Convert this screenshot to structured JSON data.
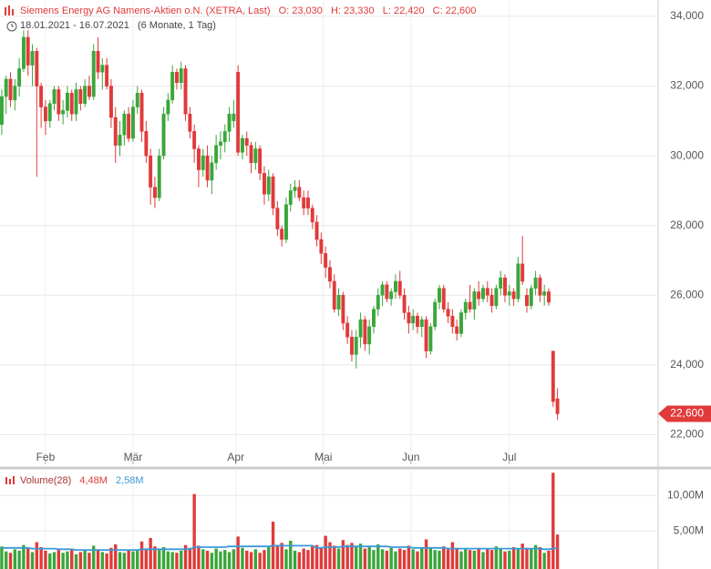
{
  "chart_data": {
    "type": "candlestick",
    "title": "Siemens Energy AG Namens-Aktien o.N. (XETRA, Last)",
    "ohlc_labels": [
      "O: 23,030",
      "H: 23,330",
      "L: 22,420",
      "C: 22,600"
    ],
    "date_range": "18.01.2021 - 16.07.2021",
    "period": "(6 Monate, 1 Tag)",
    "up_color": "#3aa63a",
    "down_color": "#e03a3a",
    "candles": [
      [
        30.9,
        31.9,
        30.6,
        31.7
      ],
      [
        31.7,
        32.3,
        31.2,
        32.2
      ],
      [
        32.2,
        32.4,
        31.4,
        31.6
      ],
      [
        31.6,
        32.2,
        31.3,
        32.0
      ],
      [
        32.0,
        32.8,
        31.7,
        32.5
      ],
      [
        32.5,
        33.6,
        32.4,
        33.4
      ],
      [
        33.4,
        33.6,
        32.3,
        32.6
      ],
      [
        32.6,
        33.2,
        32.0,
        33.0
      ],
      [
        33.0,
        33.1,
        29.4,
        32.0
      ],
      [
        32.0,
        32.1,
        30.8,
        31.4
      ],
      [
        31.4,
        31.6,
        30.6,
        31.0
      ],
      [
        31.0,
        31.6,
        30.8,
        31.5
      ],
      [
        31.5,
        32.0,
        31.3,
        31.9
      ],
      [
        31.9,
        32.0,
        31.0,
        31.2
      ],
      [
        31.2,
        31.6,
        30.9,
        31.3
      ],
      [
        31.3,
        32.0,
        31.1,
        31.8
      ],
      [
        31.8,
        31.9,
        31.0,
        31.2
      ],
      [
        31.2,
        32.1,
        31.0,
        31.9
      ],
      [
        31.9,
        32.0,
        31.3,
        31.5
      ],
      [
        31.5,
        32.2,
        31.4,
        32.0
      ],
      [
        32.0,
        32.3,
        31.6,
        31.7
      ],
      [
        31.7,
        33.2,
        31.6,
        33.0
      ],
      [
        33.0,
        33.4,
        32.2,
        32.4
      ],
      [
        32.4,
        32.8,
        31.9,
        32.6
      ],
      [
        32.6,
        32.8,
        31.9,
        32.0
      ],
      [
        32.0,
        32.2,
        30.8,
        31.1
      ],
      [
        31.1,
        31.4,
        29.8,
        30.3
      ],
      [
        30.3,
        31.0,
        30.0,
        30.6
      ],
      [
        30.6,
        31.3,
        30.3,
        31.2
      ],
      [
        31.2,
        31.4,
        30.4,
        30.5
      ],
      [
        30.5,
        31.6,
        30.4,
        31.4
      ],
      [
        31.4,
        32.0,
        31.2,
        31.8
      ],
      [
        31.8,
        31.9,
        30.4,
        30.7
      ],
      [
        30.7,
        31.0,
        29.8,
        30.0
      ],
      [
        30.0,
        30.2,
        28.6,
        29.1
      ],
      [
        29.1,
        29.4,
        28.5,
        28.8
      ],
      [
        28.8,
        30.2,
        28.7,
        30.0
      ],
      [
        30.0,
        31.4,
        29.9,
        31.2
      ],
      [
        31.2,
        31.8,
        31.0,
        31.6
      ],
      [
        31.6,
        32.6,
        31.5,
        32.4
      ],
      [
        32.4,
        32.5,
        31.9,
        32.1
      ],
      [
        32.1,
        32.7,
        31.9,
        32.5
      ],
      [
        32.5,
        32.6,
        31.0,
        31.2
      ],
      [
        31.2,
        31.4,
        30.5,
        30.7
      ],
      [
        30.7,
        30.9,
        29.8,
        30.2
      ],
      [
        30.2,
        30.3,
        29.1,
        29.6
      ],
      [
        29.6,
        30.2,
        29.4,
        30.0
      ],
      [
        30.0,
        30.3,
        29.1,
        29.3
      ],
      [
        29.3,
        30.0,
        28.9,
        29.8
      ],
      [
        29.8,
        30.6,
        29.6,
        30.3
      ],
      [
        30.3,
        30.7,
        29.9,
        30.4
      ],
      [
        30.4,
        30.9,
        30.1,
        30.7
      ],
      [
        30.7,
        31.4,
        30.4,
        31.2
      ],
      [
        31.0,
        31.6,
        30.8,
        31.2
      ],
      [
        32.4,
        32.6,
        30.0,
        30.1
      ],
      [
        30.1,
        30.6,
        29.9,
        30.5
      ],
      [
        30.5,
        30.7,
        30.0,
        30.3
      ],
      [
        30.3,
        30.4,
        29.5,
        29.8
      ],
      [
        29.8,
        30.4,
        29.6,
        30.2
      ],
      [
        30.2,
        30.3,
        29.3,
        29.5
      ],
      [
        29.5,
        29.7,
        28.6,
        28.9
      ],
      [
        28.9,
        29.6,
        28.7,
        29.4
      ],
      [
        29.4,
        29.5,
        28.3,
        28.5
      ],
      [
        28.5,
        28.7,
        27.7,
        27.9
      ],
      [
        27.9,
        28.0,
        27.4,
        27.6
      ],
      [
        27.6,
        28.8,
        27.5,
        28.6
      ],
      [
        28.6,
        29.2,
        28.4,
        29.0
      ],
      [
        29.0,
        29.3,
        28.8,
        29.1
      ],
      [
        29.1,
        29.3,
        28.7,
        28.8
      ],
      [
        28.8,
        29.0,
        28.3,
        28.5
      ],
      [
        28.8,
        29.0,
        28.3,
        28.5
      ],
      [
        28.5,
        28.6,
        27.9,
        28.1
      ],
      [
        28.1,
        28.3,
        27.4,
        27.6
      ],
      [
        27.6,
        27.8,
        26.9,
        27.2
      ],
      [
        27.2,
        27.4,
        26.5,
        26.8
      ],
      [
        26.8,
        27.0,
        26.2,
        26.4
      ],
      [
        26.4,
        26.6,
        25.5,
        25.6
      ],
      [
        25.6,
        26.2,
        25.4,
        26.0
      ],
      [
        26.0,
        26.1,
        25.0,
        25.2
      ],
      [
        25.2,
        25.4,
        24.6,
        24.8
      ],
      [
        24.8,
        25.0,
        24.1,
        24.3
      ],
      [
        24.3,
        25.0,
        23.9,
        24.8
      ],
      [
        24.8,
        25.5,
        24.5,
        25.3
      ],
      [
        25.3,
        25.4,
        24.4,
        24.6
      ],
      [
        24.6,
        25.3,
        24.3,
        25.1
      ],
      [
        25.1,
        25.7,
        24.9,
        25.6
      ],
      [
        25.6,
        26.2,
        25.4,
        26.0
      ],
      [
        26.0,
        26.4,
        25.7,
        26.3
      ],
      [
        26.3,
        26.4,
        25.8,
        25.9
      ],
      [
        25.9,
        26.2,
        25.7,
        26.1
      ],
      [
        26.1,
        26.6,
        25.9,
        26.4
      ],
      [
        26.4,
        26.7,
        25.9,
        26.0
      ],
      [
        26.0,
        26.2,
        25.3,
        25.5
      ],
      [
        25.5,
        25.7,
        24.9,
        25.2
      ],
      [
        25.2,
        25.6,
        25.0,
        25.4
      ],
      [
        25.4,
        25.5,
        24.9,
        25.1
      ],
      [
        25.1,
        25.4,
        24.8,
        25.3
      ],
      [
        25.3,
        25.4,
        24.2,
        24.4
      ],
      [
        24.4,
        25.2,
        24.3,
        25.1
      ],
      [
        25.1,
        25.9,
        25.0,
        25.8
      ],
      [
        25.8,
        26.3,
        25.6,
        26.2
      ],
      [
        26.2,
        26.3,
        25.5,
        25.6
      ],
      [
        25.6,
        25.8,
        25.2,
        25.4
      ],
      [
        25.4,
        25.6,
        24.9,
        25.1
      ],
      [
        25.1,
        25.3,
        24.7,
        24.9
      ],
      [
        24.9,
        25.6,
        24.8,
        25.5
      ],
      [
        25.5,
        25.9,
        25.3,
        25.8
      ],
      [
        25.8,
        26.3,
        25.5,
        25.6
      ],
      [
        25.6,
        26.2,
        25.3,
        26.1
      ],
      [
        26.1,
        26.4,
        25.7,
        25.9
      ],
      [
        25.9,
        26.3,
        25.8,
        26.2
      ],
      [
        26.2,
        26.4,
        25.8,
        26.0
      ],
      [
        26.0,
        26.2,
        25.5,
        25.7
      ],
      [
        25.7,
        26.3,
        25.6,
        26.2
      ],
      [
        26.2,
        26.7,
        26.0,
        26.5
      ],
      [
        26.5,
        26.6,
        25.8,
        26.0
      ],
      [
        26.0,
        26.3,
        25.7,
        26.1
      ],
      [
        26.1,
        26.2,
        25.7,
        25.9
      ],
      [
        25.9,
        27.1,
        25.8,
        26.9
      ],
      [
        26.9,
        27.7,
        26.3,
        26.4
      ],
      [
        26.0,
        26.2,
        25.5,
        25.7
      ],
      [
        25.7,
        26.3,
        25.6,
        26.2
      ],
      [
        26.2,
        26.7,
        26.0,
        26.5
      ],
      [
        26.5,
        26.6,
        25.8,
        26.0
      ],
      [
        26.0,
        26.3,
        25.7,
        26.1
      ],
      [
        26.1,
        26.2,
        25.7,
        25.8
      ],
      [
        24.4,
        24.4,
        22.8,
        22.95
      ],
      [
        23.03,
        23.33,
        22.42,
        22.6
      ]
    ],
    "ylim": [
      21.15,
      34.47
    ],
    "yticks": [
      {
        "value": 22,
        "label": "22,000"
      },
      {
        "value": 24,
        "label": "24,000"
      },
      {
        "value": 26,
        "label": "26,000"
      },
      {
        "value": 28,
        "label": "28,000"
      },
      {
        "value": 30,
        "label": "30,000"
      },
      {
        "value": 32,
        "label": "32,000"
      },
      {
        "value": 34,
        "label": "34,000"
      }
    ],
    "xlim": [
      -0.4,
      150
    ],
    "xticks": [
      {
        "value": 10,
        "label": "Feb"
      },
      {
        "value": 30,
        "label": "Mär"
      },
      {
        "value": 53.5,
        "label": "Apr"
      },
      {
        "value": 73.5,
        "label": "Mai"
      },
      {
        "value": 93.5,
        "label": "Jun"
      },
      {
        "value": 116,
        "label": "Jul"
      }
    ],
    "last_price": {
      "value": 22.6,
      "label": "22,600"
    },
    "grid": true,
    "volume": {
      "name": "Volume(28)",
      "last_label": "4,48M",
      "values": [
        2.8,
        2.1,
        1.9,
        2.4,
        2.2,
        3.0,
        2.6,
        2.0,
        3.4,
        2.7,
        2.2,
        1.8,
        2.0,
        2.3,
        1.9,
        2.1,
        2.5,
        1.7,
        2.0,
        2.2,
        1.9,
        2.9,
        2.4,
        2.0,
        1.8,
        2.6,
        3.1,
        2.0,
        1.9,
        2.2,
        2.1,
        2.3,
        3.5,
        2.4,
        4.0,
        2.8,
        2.3,
        2.7,
        2.1,
        2.0,
        1.9,
        2.2,
        3.0,
        2.6,
        10.2,
        2.9,
        2.4,
        2.2,
        1.9,
        2.5,
        2.1,
        2.3,
        2.0,
        2.4,
        4.2,
        2.6,
        2.2,
        2.0,
        2.4,
        1.9,
        2.3,
        2.7,
        6.3,
        2.9,
        3.3,
        2.4,
        3.6,
        2.2,
        2.0,
        2.5,
        2.3,
        2.8,
        3.0,
        2.6,
        4.3,
        3.4,
        2.9,
        2.5,
        3.7,
        3.0,
        3.3,
        2.8,
        3.2,
        2.5,
        2.7,
        2.3,
        3.1,
        2.4,
        2.2,
        2.6,
        2.1,
        2.5,
        2.3,
        2.9,
        2.4,
        2.1,
        2.6,
        3.8,
        2.7,
        2.3,
        2.2,
        2.8,
        2.4,
        3.4,
        2.6,
        2.1,
        2.5,
        2.3,
        2.2,
        2.6,
        2.0,
        2.4,
        2.3,
        2.8,
        2.5,
        2.1,
        2.2,
        2.7,
        2.4,
        3.2,
        2.6,
        2.4,
        3.0,
        2.7,
        1.9,
        2.2,
        13.2,
        4.48
      ],
      "ma": {
        "color": "#3a9ad9",
        "last_label": "2,58M",
        "values": [
          2.6,
          2.6,
          2.6,
          2.6,
          2.6,
          2.6,
          2.6,
          2.5,
          2.5,
          2.5,
          2.5,
          2.5,
          2.5,
          2.4,
          2.4,
          2.4,
          2.4,
          2.3,
          2.3,
          2.3,
          2.3,
          2.3,
          2.3,
          2.3,
          2.3,
          2.3,
          2.3,
          2.3,
          2.3,
          2.3,
          2.3,
          2.3,
          2.4,
          2.4,
          2.4,
          2.4,
          2.4,
          2.4,
          2.4,
          2.4,
          2.4,
          2.4,
          2.4,
          2.4,
          2.7,
          2.7,
          2.7,
          2.7,
          2.7,
          2.7,
          2.7,
          2.7,
          2.8,
          2.8,
          2.8,
          2.8,
          2.8,
          2.8,
          2.8,
          2.8,
          2.8,
          2.8,
          2.9,
          2.9,
          2.9,
          2.9,
          2.9,
          2.9,
          2.9,
          2.9,
          2.9,
          2.9,
          2.6,
          2.6,
          2.7,
          2.7,
          2.7,
          2.7,
          2.8,
          2.8,
          2.8,
          2.8,
          2.8,
          2.8,
          2.8,
          2.8,
          2.8,
          2.8,
          2.8,
          2.7,
          2.7,
          2.7,
          2.7,
          2.7,
          2.6,
          2.6,
          2.6,
          2.6,
          2.6,
          2.6,
          2.6,
          2.6,
          2.5,
          2.5,
          2.5,
          2.5,
          2.5,
          2.5,
          2.5,
          2.5,
          2.5,
          2.5,
          2.5,
          2.5,
          2.5,
          2.5,
          2.5,
          2.5,
          2.5,
          2.5,
          2.5,
          2.5,
          2.5,
          2.5,
          2.4,
          2.4,
          2.5,
          2.58
        ]
      },
      "ylim": [
        0,
        13.5
      ],
      "yticks": [
        {
          "value": 5,
          "label": "5,00M"
        },
        {
          "value": 10,
          "label": "10,00M"
        }
      ]
    }
  }
}
